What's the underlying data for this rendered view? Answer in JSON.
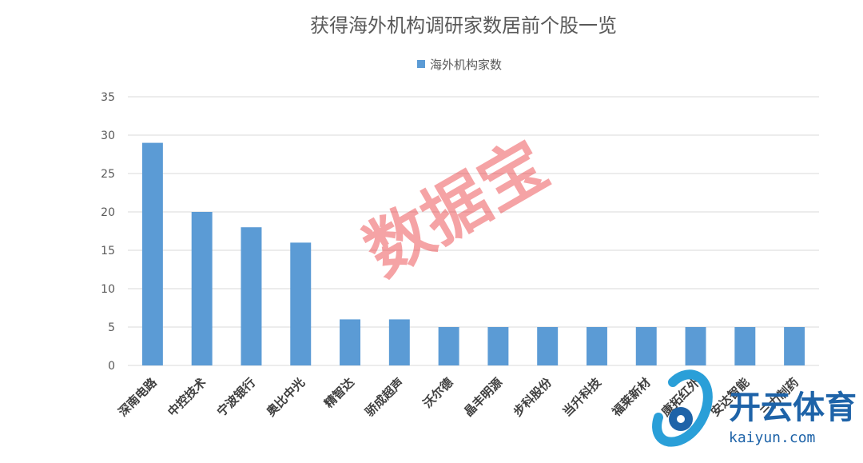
{
  "chart_data": {
    "type": "bar",
    "title": "获得海外机构调研家数居前个股一览",
    "legend": {
      "position": "top",
      "entries": [
        "海外机构家数"
      ]
    },
    "categories": [
      "深南电路",
      "中控技术",
      "宁波银行",
      "奥比中光",
      "精智达",
      "骄成超声",
      "沃尔德",
      "晶丰明源",
      "步科股份",
      "当升科技",
      "福莱新材",
      "康拓红外",
      "安达智能",
      "三力制药"
    ],
    "series": [
      {
        "name": "海外机构家数",
        "values": [
          29,
          20,
          18,
          16,
          6,
          6,
          5,
          5,
          5,
          5,
          5,
          5,
          5,
          5
        ]
      }
    ],
    "yticks": [
      "0",
      "5",
      "10",
      "15",
      "20",
      "25",
      "30",
      "35"
    ],
    "ylim": [
      0,
      35
    ],
    "grid": true,
    "colors": {
      "bar": "#5b9bd5"
    }
  },
  "watermark": "数据宝",
  "brand": {
    "name": "开云体育",
    "url": "kaiyun.com"
  }
}
